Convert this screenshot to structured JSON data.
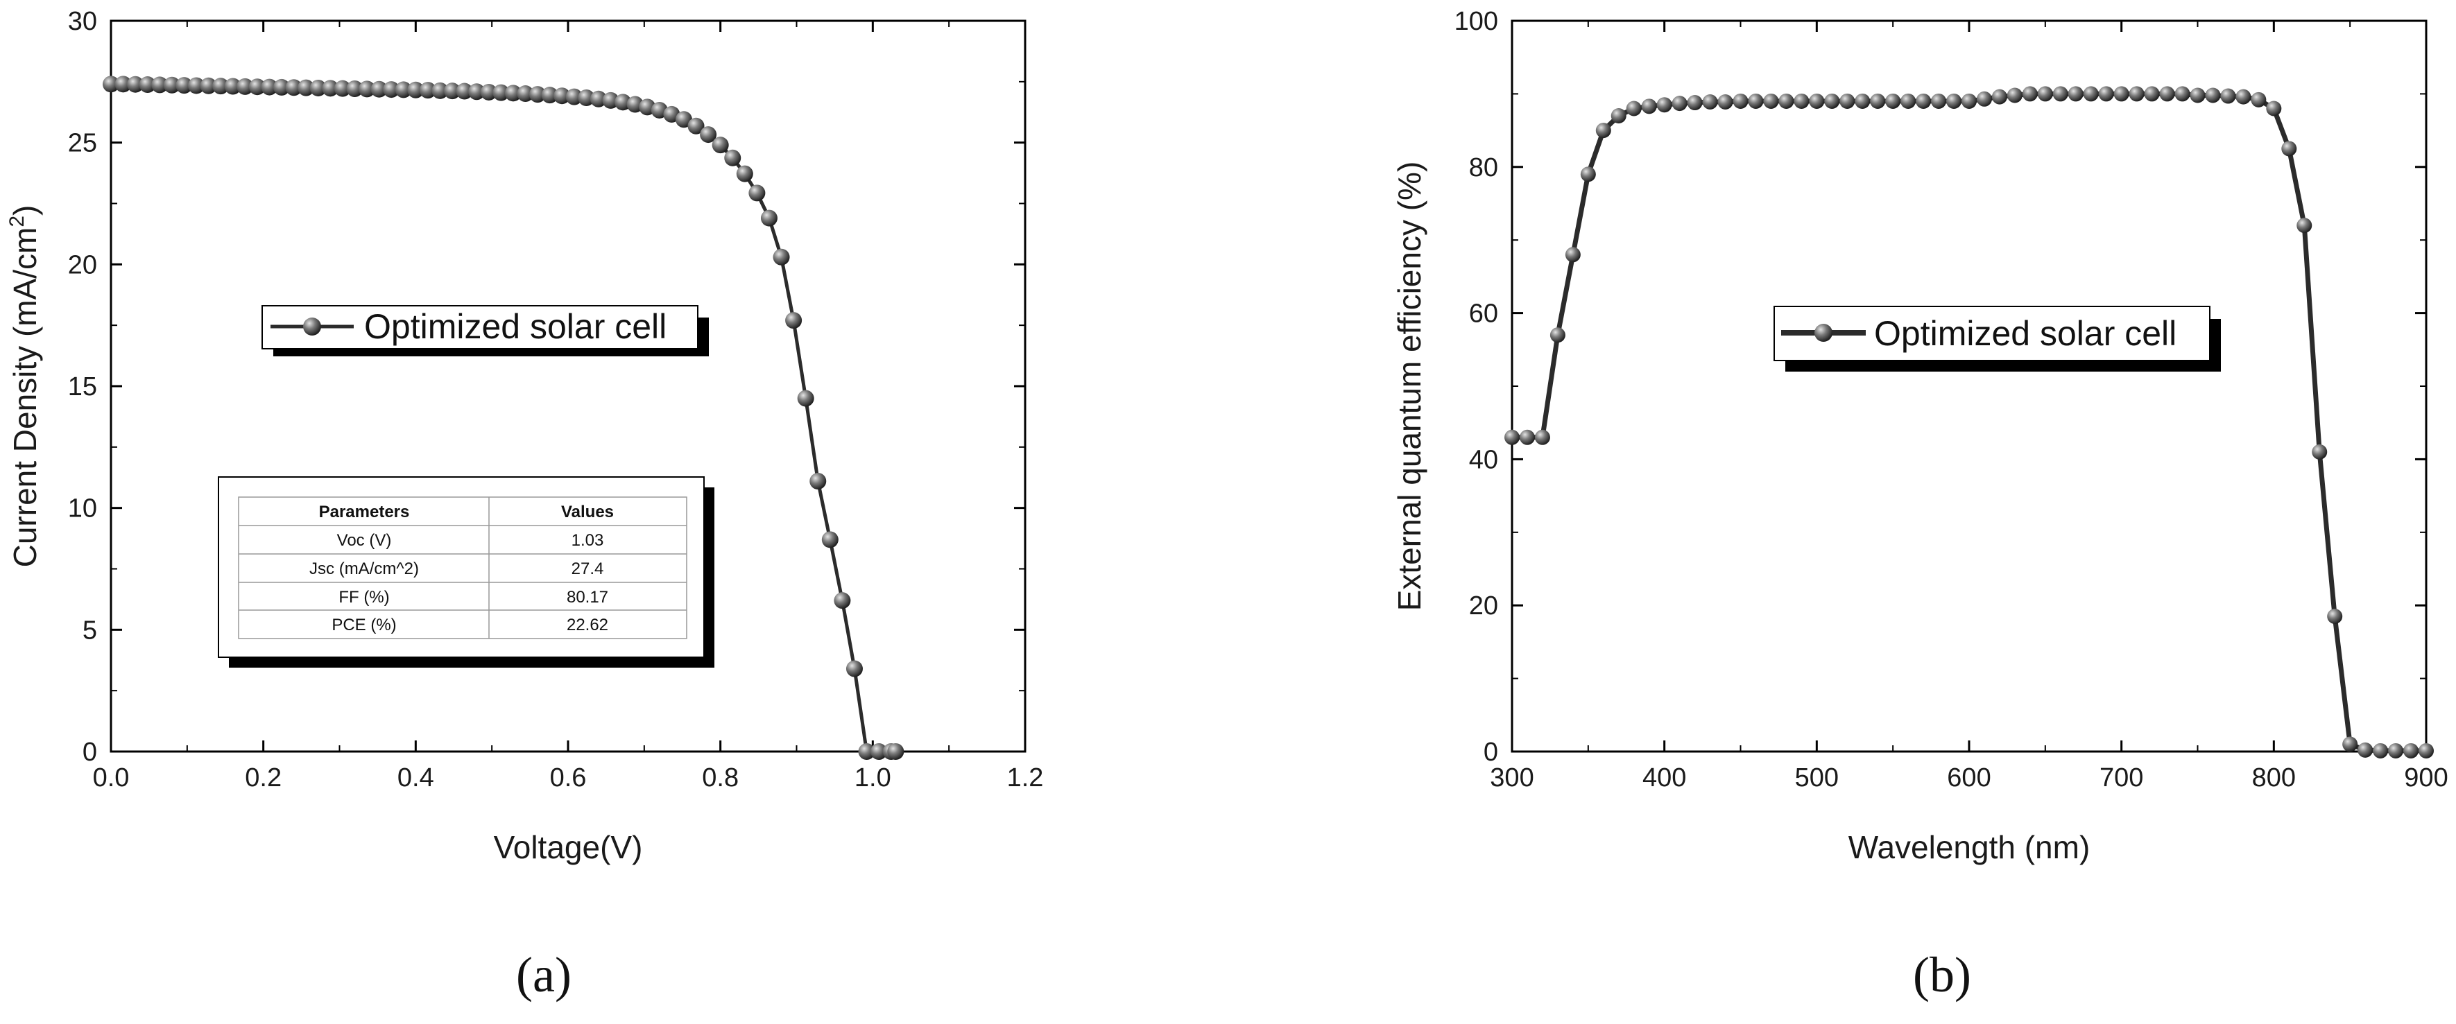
{
  "chart_data": [
    {
      "type": "line",
      "panel_label": "(a)",
      "xlabel": "Voltage(V)",
      "ylabel": "Current Density (mA/cm",
      "ylabel_sup": "2",
      "ylabel_end": ")",
      "xlim": [
        0,
        1.2
      ],
      "ylim": [
        0,
        30
      ],
      "xticks": [
        "0.0",
        "0.2",
        "0.4",
        "0.6",
        "0.8",
        "1.0",
        "1.2"
      ],
      "yticks": [
        "0",
        "5",
        "10",
        "15",
        "20",
        "25",
        "30"
      ],
      "legend_position": "center-left",
      "series": [
        {
          "name": "Optimized solar cell",
          "x": [
            0.0,
            0.016,
            0.032,
            0.048,
            0.064,
            0.08,
            0.096,
            0.112,
            0.128,
            0.144,
            0.16,
            0.176,
            0.192,
            0.208,
            0.224,
            0.24,
            0.256,
            0.272,
            0.288,
            0.304,
            0.32,
            0.336,
            0.352,
            0.368,
            0.384,
            0.4,
            0.416,
            0.432,
            0.448,
            0.464,
            0.48,
            0.496,
            0.512,
            0.528,
            0.544,
            0.56,
            0.576,
            0.592,
            0.608,
            0.624,
            0.64,
            0.656,
            0.672,
            0.688,
            0.704,
            0.72,
            0.736,
            0.752,
            0.768,
            0.784,
            0.8,
            0.816,
            0.832,
            0.848,
            0.864,
            0.88,
            0.896,
            0.912,
            0.928,
            0.944,
            0.96,
            0.976,
            0.992,
            1.008,
            1.024,
            1.03
          ],
          "y": [
            27.4,
            27.4,
            27.39,
            27.38,
            27.37,
            27.36,
            27.35,
            27.34,
            27.33,
            27.32,
            27.31,
            27.3,
            27.29,
            27.28,
            27.27,
            27.26,
            27.25,
            27.24,
            27.23,
            27.22,
            27.21,
            27.2,
            27.19,
            27.18,
            27.17,
            27.16,
            27.15,
            27.13,
            27.12,
            27.11,
            27.09,
            27.07,
            27.05,
            27.03,
            27.01,
            26.98,
            26.95,
            26.92,
            26.88,
            26.84,
            26.79,
            26.73,
            26.66,
            26.57,
            26.46,
            26.33,
            26.16,
            25.95,
            25.68,
            25.33,
            24.9,
            24.37,
            23.72,
            22.93,
            21.9,
            20.3,
            17.7,
            14.5,
            11.1,
            8.7,
            6.2,
            3.4,
            0.0,
            0.0,
            0.0,
            0.0
          ]
        }
      ],
      "table": {
        "headers": [
          "Parameters",
          "Values"
        ],
        "rows": [
          [
            "Voc (V)",
            "1.03"
          ],
          [
            "Jsc (mA/cm^2)",
            "27.4"
          ],
          [
            "FF (%)",
            "80.17"
          ],
          [
            "PCE (%)",
            "22.62"
          ]
        ]
      }
    },
    {
      "type": "line",
      "panel_label": "(b)",
      "xlabel": "Wavelength (nm)",
      "ylabel": "External quantum efficiency (%)",
      "xlim": [
        300,
        900
      ],
      "ylim": [
        0,
        100
      ],
      "xticks": [
        "300",
        "400",
        "500",
        "600",
        "700",
        "800",
        "900"
      ],
      "yticks": [
        "0",
        "20",
        "40",
        "60",
        "80",
        "100"
      ],
      "legend_position": "center",
      "series": [
        {
          "name": "Optimized solar cell",
          "x": [
            300,
            310,
            320,
            330,
            340,
            350,
            360,
            370,
            380,
            390,
            400,
            410,
            420,
            430,
            440,
            450,
            460,
            470,
            480,
            490,
            500,
            510,
            520,
            530,
            540,
            550,
            560,
            570,
            580,
            590,
            600,
            610,
            620,
            630,
            640,
            650,
            660,
            670,
            680,
            690,
            700,
            710,
            720,
            730,
            740,
            750,
            760,
            770,
            780,
            790,
            800,
            810,
            820,
            830,
            840,
            850,
            860,
            870,
            880,
            890,
            900
          ],
          "y": [
            43,
            43,
            43,
            57,
            68,
            79,
            85,
            87,
            88,
            88.3,
            88.5,
            88.7,
            88.8,
            88.9,
            88.9,
            89,
            89,
            89,
            89,
            89,
            89,
            89,
            89,
            89,
            89,
            89,
            89,
            89,
            89,
            89,
            89,
            89.3,
            89.6,
            89.8,
            90,
            90,
            90,
            90,
            90,
            90,
            90,
            90,
            90,
            90,
            90,
            89.8,
            89.8,
            89.7,
            89.6,
            89.2,
            88,
            82.5,
            72,
            41,
            18.5,
            1,
            0.2,
            0.1,
            0.1,
            0.1,
            0.1
          ]
        }
      ]
    }
  ],
  "colors": {
    "line": "#2b2b2b",
    "marker_light": "#c8c8c8",
    "marker_dark": "#2a2a2a",
    "axis": "#000000"
  }
}
